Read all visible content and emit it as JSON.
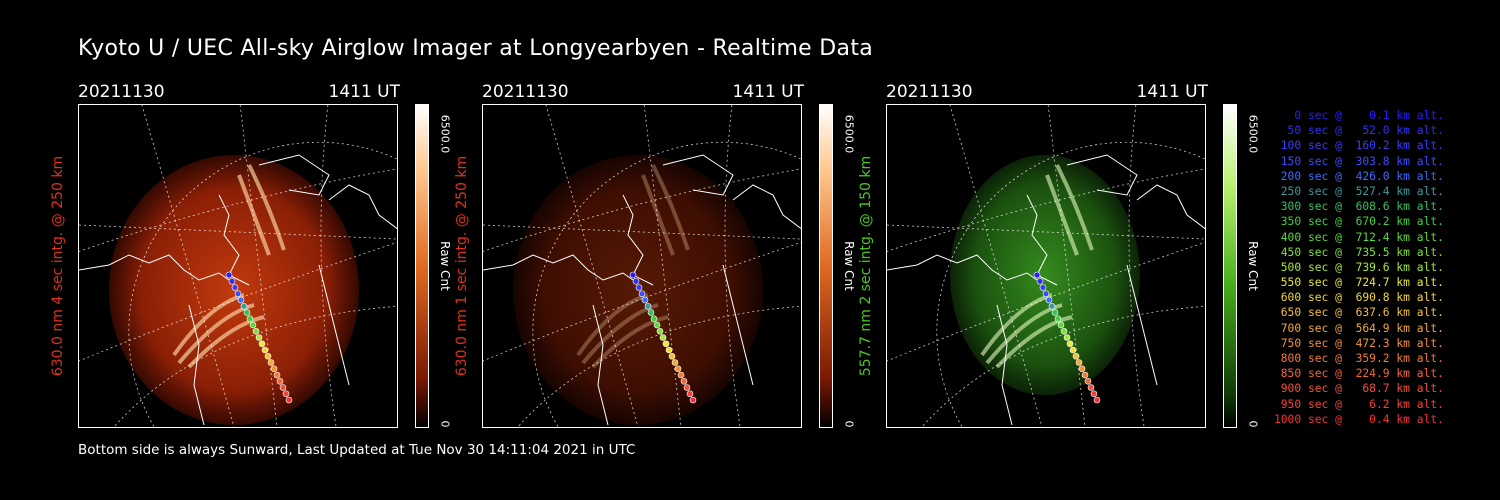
{
  "title": "Kyoto U / UEC All-sky Airglow Imager at Longyearbyen - Realtime Data",
  "footer": "Bottom side is always Sunward, Last Updated at Tue Nov 30 14:11:04 2021 in UTC",
  "colors": {
    "red_panel_label": "#e0301a",
    "green_panel_label": "#4ac81e"
  },
  "panels": [
    {
      "date": "20211130",
      "time": "1411 UT",
      "side_label": "630.0 nm 4 sec intg. @ 250 km",
      "colorbar_max": "6500.0",
      "colorbar_min": "0",
      "colorbar_unit": "Raw Cnt",
      "palette": "red",
      "brightness": 1.0
    },
    {
      "date": "20211130",
      "time": "1411 UT",
      "side_label": "630.0 nm 1 sec intg. @ 250 km",
      "colorbar_max": "6500.0",
      "colorbar_min": "0",
      "colorbar_unit": "Raw Cnt",
      "palette": "red",
      "brightness": 0.45
    },
    {
      "date": "20211130",
      "time": "1411 UT",
      "side_label": "557.7 nm 2 sec intg. @ 150 km",
      "colorbar_max": "6500.0",
      "colorbar_min": "0",
      "colorbar_unit": "Raw Cnt",
      "palette": "green",
      "brightness": 0.9
    }
  ],
  "trajectory_legend": [
    {
      "text": "   0 sec @    0.1 km alt.",
      "color": "#2a1cff"
    },
    {
      "text": "  50 sec @   52.0 km alt.",
      "color": "#2f2ff5"
    },
    {
      "text": " 100 sec @  160.2 km alt.",
      "color": "#3a3aff"
    },
    {
      "text": " 150 sec @  303.8 km alt.",
      "color": "#3a4cff"
    },
    {
      "text": " 200 sec @  426.0 km alt.",
      "color": "#3a6cff"
    },
    {
      "text": " 250 sec @  527.4 km alt.",
      "color": "#3a9aa0"
    },
    {
      "text": " 300 sec @  608.6 km alt.",
      "color": "#36c060"
    },
    {
      "text": " 350 sec @  670.2 km alt.",
      "color": "#40d040"
    },
    {
      "text": " 400 sec @  712.4 km alt.",
      "color": "#5cd83a"
    },
    {
      "text": " 450 sec @  735.5 km alt.",
      "color": "#7ee03a"
    },
    {
      "text": " 500 sec @  739.6 km alt.",
      "color": "#a8e83a"
    },
    {
      "text": " 550 sec @  724.7 km alt.",
      "color": "#e8e83a"
    },
    {
      "text": " 600 sec @  690.8 km alt.",
      "color": "#f2d83a"
    },
    {
      "text": " 650 sec @  637.6 km alt.",
      "color": "#f2c03a"
    },
    {
      "text": " 700 sec @  564.9 km alt.",
      "color": "#f2a83a"
    },
    {
      "text": " 750 sec @  472.3 km alt.",
      "color": "#f2903a"
    },
    {
      "text": " 800 sec @  359.2 km alt.",
      "color": "#f27a3a"
    },
    {
      "text": " 850 sec @  224.9 km alt.",
      "color": "#f2663a"
    },
    {
      "text": " 900 sec @   68.7 km alt.",
      "color": "#f2503a"
    },
    {
      "text": " 950 sec @    6.2 km alt.",
      "color": "#f2403a"
    },
    {
      "text": "1000 sec @    0.4 km alt.",
      "color": "#f2303a"
    }
  ]
}
